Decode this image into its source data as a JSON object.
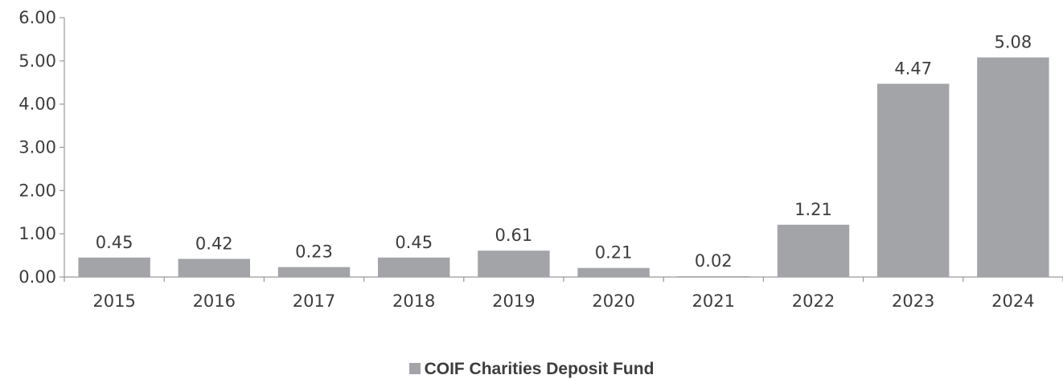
{
  "chart_data": {
    "type": "bar",
    "categories": [
      "2015",
      "2016",
      "2017",
      "2018",
      "2019",
      "2020",
      "2021",
      "2022",
      "2023",
      "2024"
    ],
    "series": [
      {
        "name": "COIF Charities Deposit Fund",
        "values": [
          0.45,
          0.42,
          0.23,
          0.45,
          0.61,
          0.21,
          0.02,
          1.21,
          4.47,
          5.08
        ],
        "labels": [
          "0.45",
          "0.42",
          "0.23",
          "0.45",
          "0.61",
          "0.21",
          "0.02",
          "1.21",
          "4.47",
          "5.08"
        ],
        "color": "#a2a4a7"
      }
    ],
    "yticks": [
      "0.00",
      "1.00",
      "2.00",
      "3.00",
      "4.00",
      "5.00",
      "6.00"
    ],
    "ylim": [
      0,
      6
    ],
    "title": "",
    "xlabel": "",
    "ylabel": "",
    "legend_position": "bottom-center",
    "grid": false
  },
  "colors": {
    "bar": "#a2a4a7",
    "axis": "#9a9a9a",
    "text": "#3d3d3d"
  }
}
